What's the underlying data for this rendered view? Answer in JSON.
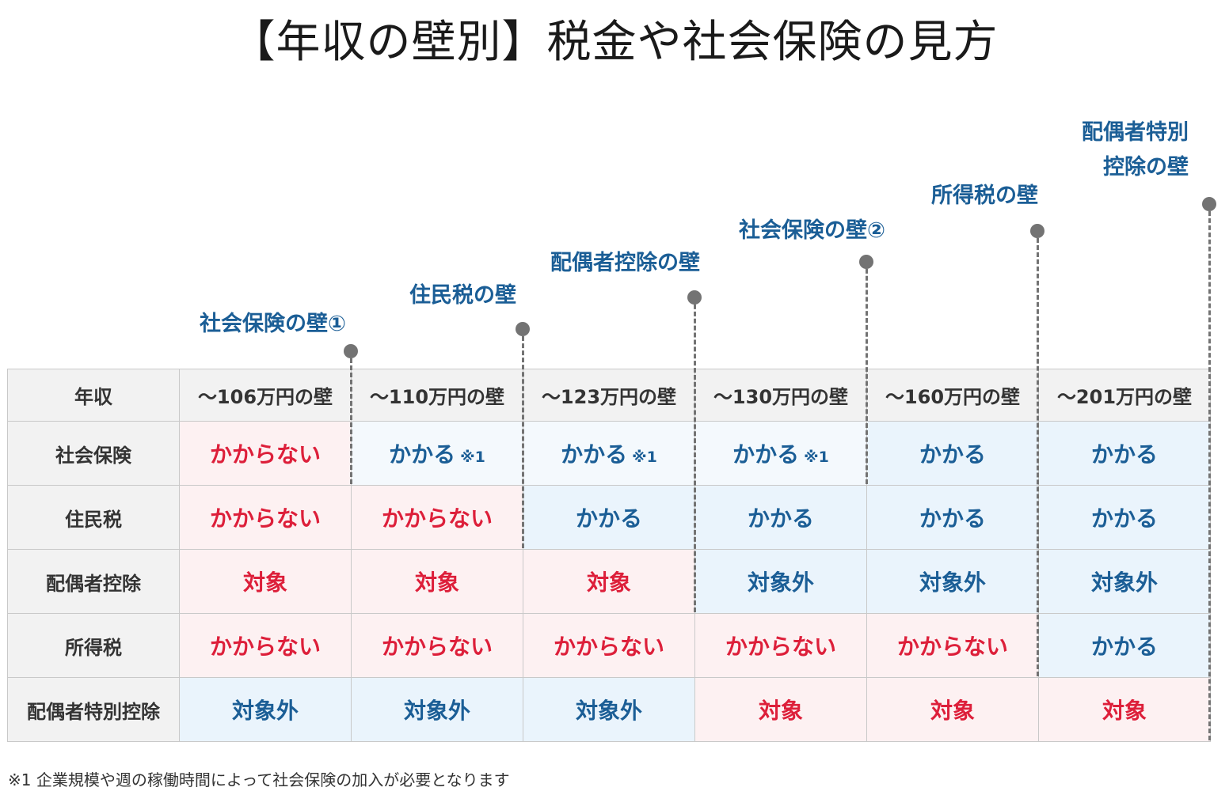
{
  "title": "【年収の壁別】税金や社会保険の見方",
  "walls": [
    {
      "label": "社会保険の壁①"
    },
    {
      "label": "住民税の壁"
    },
    {
      "label": "配偶者控除の壁"
    },
    {
      "label": "社会保険の壁②"
    },
    {
      "label": "所得税の壁"
    },
    {
      "label_line1": "配偶者特別",
      "label_line2": "控除の壁"
    }
  ],
  "table": {
    "corner": "年収",
    "columns": [
      "〜106万円の壁",
      "〜110万円の壁",
      "〜123万円の壁",
      "〜130万円の壁",
      "〜160万円の壁",
      "〜201万円の壁"
    ],
    "rows": [
      {
        "label": "社会保険",
        "cells": [
          {
            "text": "かからない",
            "status": "yes"
          },
          {
            "text": "かかる",
            "note": "※1",
            "status": "no"
          },
          {
            "text": "かかる",
            "note": "※1",
            "status": "no"
          },
          {
            "text": "かかる",
            "note": "※1",
            "status": "no"
          },
          {
            "text": "かかる",
            "status": "no"
          },
          {
            "text": "かかる",
            "status": "no"
          }
        ]
      },
      {
        "label": "住民税",
        "cells": [
          {
            "text": "かからない",
            "status": "yes"
          },
          {
            "text": "かからない",
            "status": "yes"
          },
          {
            "text": "かかる",
            "status": "no"
          },
          {
            "text": "かかる",
            "status": "no"
          },
          {
            "text": "かかる",
            "status": "no"
          },
          {
            "text": "かかる",
            "status": "no"
          }
        ]
      },
      {
        "label": "配偶者控除",
        "cells": [
          {
            "text": "対象",
            "status": "yes"
          },
          {
            "text": "対象",
            "status": "yes"
          },
          {
            "text": "対象",
            "status": "yes"
          },
          {
            "text": "対象外",
            "status": "no"
          },
          {
            "text": "対象外",
            "status": "no"
          },
          {
            "text": "対象外",
            "status": "no"
          }
        ]
      },
      {
        "label": "所得税",
        "cells": [
          {
            "text": "かからない",
            "status": "yes"
          },
          {
            "text": "かからない",
            "status": "yes"
          },
          {
            "text": "かからない",
            "status": "yes"
          },
          {
            "text": "かからない",
            "status": "yes"
          },
          {
            "text": "かからない",
            "status": "yes"
          },
          {
            "text": "かかる",
            "status": "no"
          }
        ]
      },
      {
        "label": "配偶者特別控除",
        "cells": [
          {
            "text": "対象外",
            "status": "no"
          },
          {
            "text": "対象外",
            "status": "no"
          },
          {
            "text": "対象外",
            "status": "no"
          },
          {
            "text": "対象",
            "status": "yes"
          },
          {
            "text": "対象",
            "status": "yes"
          },
          {
            "text": "対象",
            "status": "yes"
          }
        ]
      }
    ]
  },
  "footnote": "※1 企業規模や週の稼働時間によって社会保険の加入が必要となります",
  "colors": {
    "red_text": "#dd1f3a",
    "blue_text": "#1b5e96",
    "red_bg": "#fdf1f2",
    "blue_bg": "#eaf4fc",
    "header_bg": "#f2f2f2",
    "marker": "#737373"
  }
}
